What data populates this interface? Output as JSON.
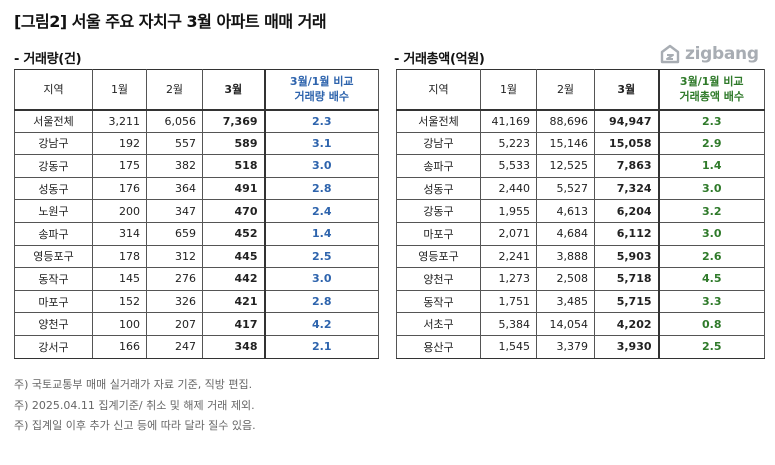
{
  "title": "[그림2] 서울  주요 자치구  3월 아파트 매매 거래",
  "logo": {
    "text": "zigbang",
    "icon": "zigbang-logo-icon"
  },
  "left_table": {
    "subtitle": "- 거래량(건)",
    "headers": [
      "지역",
      "1월",
      "2월",
      "3월",
      "3월/1월 비교\n거래량 배수"
    ],
    "rows": [
      [
        "서울전체",
        "3,211",
        "6,056",
        "7,369",
        "2.3"
      ],
      [
        "강남구",
        "192",
        "557",
        "589",
        "3.1"
      ],
      [
        "강동구",
        "175",
        "382",
        "518",
        "3.0"
      ],
      [
        "성동구",
        "176",
        "364",
        "491",
        "2.8"
      ],
      [
        "노원구",
        "200",
        "347",
        "470",
        "2.4"
      ],
      [
        "송파구",
        "314",
        "659",
        "452",
        "1.4"
      ],
      [
        "영등포구",
        "178",
        "312",
        "445",
        "2.5"
      ],
      [
        "동작구",
        "145",
        "276",
        "442",
        "3.0"
      ],
      [
        "마포구",
        "152",
        "326",
        "421",
        "2.8"
      ],
      [
        "양천구",
        "100",
        "207",
        "417",
        "4.2"
      ],
      [
        "강서구",
        "166",
        "247",
        "348",
        "2.1"
      ]
    ]
  },
  "right_table": {
    "subtitle": "- 거래총액(억원)",
    "headers": [
      "지역",
      "1월",
      "2월",
      "3월",
      "3월/1월 비교\n거래총액 배수"
    ],
    "rows": [
      [
        "서울전체",
        "41,169",
        "88,696",
        "94,947",
        "2.3"
      ],
      [
        "강남구",
        "5,223",
        "15,146",
        "15,058",
        "2.9"
      ],
      [
        "송파구",
        "5,533",
        "12,525",
        "7,863",
        "1.4"
      ],
      [
        "성동구",
        "2,440",
        "5,527",
        "7,324",
        "3.0"
      ],
      [
        "강동구",
        "1,955",
        "4,613",
        "6,204",
        "3.2"
      ],
      [
        "마포구",
        "2,071",
        "4,684",
        "6,112",
        "3.0"
      ],
      [
        "영등포구",
        "2,241",
        "3,888",
        "5,903",
        "2.6"
      ],
      [
        "양천구",
        "1,273",
        "2,508",
        "5,718",
        "4.5"
      ],
      [
        "동작구",
        "1,751",
        "3,485",
        "5,715",
        "3.3"
      ],
      [
        "서초구",
        "5,384",
        "14,054",
        "4,202",
        "0.8"
      ],
      [
        "용산구",
        "1,545",
        "3,379",
        "3,930",
        "2.5"
      ]
    ]
  },
  "notes": [
    "주) 국토교통부 매매 실거래가 자료 기준, 직방 편집.",
    "주) 2025.04.11 집계기준/ 취소 및 해제 거래 제외.",
    "주) 집계일 이후 추가 신고 등에 따라 달라 질수 있음."
  ],
  "colors": {
    "left_ratio": "#2e64ad",
    "right_ratio": "#2f7a2a",
    "logo": "#a8adb3"
  }
}
